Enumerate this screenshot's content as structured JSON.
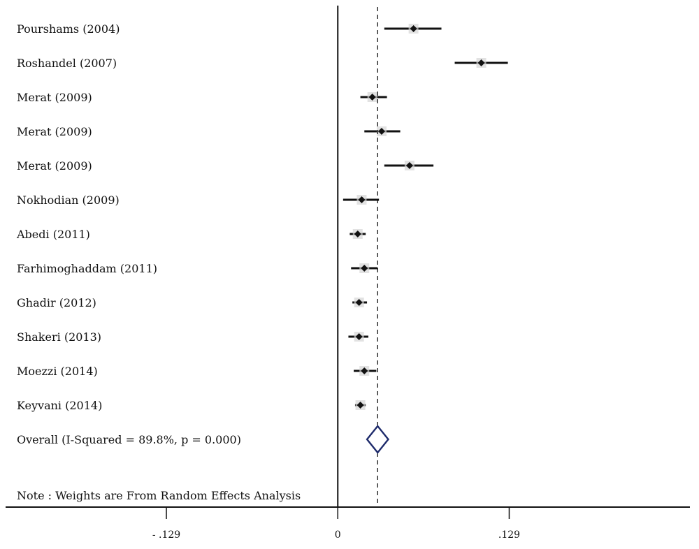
{
  "chart_data": {
    "type": "forest",
    "xlim": [
      -0.25,
      0.265
    ],
    "null_line_value": 0,
    "pooled_effect": 0.03,
    "studies": [
      {
        "label": "Pourshams (2004)",
        "estimate": 0.057,
        "ci_low": 0.035,
        "ci_high": 0.078
      },
      {
        "label": "Roshandel (2007)",
        "estimate": 0.108,
        "ci_low": 0.088,
        "ci_high": 0.128
      },
      {
        "label": "Merat (2009)",
        "estimate": 0.026,
        "ci_low": 0.017,
        "ci_high": 0.037
      },
      {
        "label": "Merat (2009)",
        "estimate": 0.033,
        "ci_low": 0.02,
        "ci_high": 0.047
      },
      {
        "label": "Merat (2009)",
        "estimate": 0.054,
        "ci_low": 0.035,
        "ci_high": 0.072
      },
      {
        "label": "Nokhodian (2009)",
        "estimate": 0.018,
        "ci_low": 0.004,
        "ci_high": 0.031
      },
      {
        "label": "Abedi (2011)",
        "estimate": 0.015,
        "ci_low": 0.009,
        "ci_high": 0.021
      },
      {
        "label": "Farhimoghaddam (2011)",
        "estimate": 0.02,
        "ci_low": 0.01,
        "ci_high": 0.03
      },
      {
        "label": "Ghadir (2012)",
        "estimate": 0.016,
        "ci_low": 0.011,
        "ci_high": 0.022
      },
      {
        "label": "Shakeri (2013)",
        "estimate": 0.016,
        "ci_low": 0.008,
        "ci_high": 0.023
      },
      {
        "label": "Moezzi (2014)",
        "estimate": 0.02,
        "ci_low": 0.012,
        "ci_high": 0.029
      },
      {
        "label": "Keyvani (2014)",
        "estimate": 0.017,
        "ci_low": 0.013,
        "ci_high": 0.021
      }
    ],
    "overall": {
      "label": "Overall (I-Squared = 89.8%, p = 0.000)",
      "estimate": 0.03,
      "ci_low": 0.022,
      "ci_high": 0.038
    },
    "note": "Note : Weights are From Random Effects Analysis",
    "x_ticks": [
      {
        "value": -0.129,
        "label": "- .129"
      },
      {
        "value": 0,
        "label": "0"
      },
      {
        "value": 0.129,
        "label": ".129"
      }
    ],
    "colors": {
      "markers": "#111111",
      "overall_diamond": "#1d2a6b",
      "weight_box": "#d6d6d6"
    }
  }
}
